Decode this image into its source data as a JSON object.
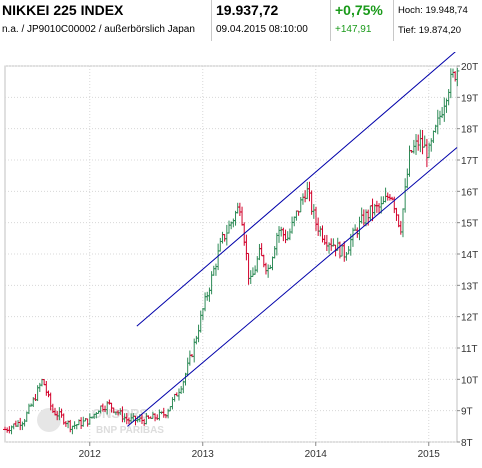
{
  "header": {
    "name": "NIKKEI 225 INDEX",
    "subtitle": "n.a. / JP9010C00002 / außerbörslich Japan",
    "price": "19.937,72",
    "datetime": "09.04.2015 08:10:00",
    "change_pct": "+0,75%",
    "change_abs": "+147,91",
    "high_label": "Hoch:",
    "high_value": "19.948,74",
    "low_label": "Tief:",
    "low_value": "19.874,20"
  },
  "colors": {
    "up": "#2e8b57",
    "down": "#d2002a",
    "channel": "#0000aa",
    "grid": "#d8d8d8",
    "positive": "#1a9a1a"
  },
  "watermark": {
    "line1": "ONSORS",
    "line2": "BNP PARIBAS"
  },
  "chart_data": {
    "type": "candlestick",
    "ylim": [
      8000,
      20000
    ],
    "y_ticks": [
      8000,
      9000,
      10000,
      11000,
      12000,
      13000,
      14000,
      15000,
      16000,
      17000,
      18000,
      19000,
      20000
    ],
    "y_tick_labels": [
      "8T",
      "9T",
      "10T",
      "11T",
      "12T",
      "13T",
      "14T",
      "15T",
      "16T",
      "17T",
      "18T",
      "19T",
      "20T"
    ],
    "xlim": [
      "2011-04",
      "2015-04"
    ],
    "x_ticks": [
      "2012-01",
      "2013-01",
      "2014-01",
      "2015-01"
    ],
    "x_tick_labels": [
      "2012",
      "2013",
      "2014",
      "2015"
    ],
    "grid": true,
    "ohlc_interval": "weekly",
    "trend_channel": {
      "upper": {
        "start": [
          "2012-06",
          11700
        ],
        "end": [
          "2015-04",
          20500
        ]
      },
      "lower": {
        "start": [
          "2012-05",
          8500
        ],
        "end": [
          "2015-04",
          17400
        ]
      }
    },
    "anchors": [
      [
        "2011-04",
        8400
      ],
      [
        "2011-06",
        8700
      ],
      [
        "2011-07",
        9300
      ],
      [
        "2011-08",
        10000
      ],
      [
        "2011-09",
        9000
      ],
      [
        "2011-10",
        8800
      ],
      [
        "2011-11",
        8500
      ],
      [
        "2012-01",
        8700
      ],
      [
        "2012-02",
        9100
      ],
      [
        "2012-03",
        9200
      ],
      [
        "2012-05",
        8700
      ],
      [
        "2012-06",
        8700
      ],
      [
        "2012-07",
        8700
      ],
      [
        "2012-09",
        8900
      ],
      [
        "2012-10",
        9400
      ],
      [
        "2012-11",
        10000
      ],
      [
        "2012-12",
        11000
      ],
      [
        "2013-01",
        12200
      ],
      [
        "2013-02",
        13300
      ],
      [
        "2013-03",
        14400
      ],
      [
        "2013-04",
        15000
      ],
      [
        "2013-05",
        15600
      ],
      [
        "2013-06",
        13000
      ],
      [
        "2013-07",
        14000
      ],
      [
        "2013-08",
        13500
      ],
      [
        "2013-09",
        14800
      ],
      [
        "2013-10",
        14500
      ],
      [
        "2013-11",
        15300
      ],
      [
        "2013-12",
        16100
      ],
      [
        "2014-01",
        15000
      ],
      [
        "2014-02",
        14500
      ],
      [
        "2014-03",
        14300
      ],
      [
        "2014-04",
        14000
      ],
      [
        "2014-05",
        14600
      ],
      [
        "2014-06",
        15100
      ],
      [
        "2014-07",
        15400
      ],
      [
        "2014-08",
        15500
      ],
      [
        "2014-09",
        16000
      ],
      [
        "2014-10",
        14800
      ],
      [
        "2014-11",
        17200
      ],
      [
        "2014-12",
        17600
      ],
      [
        "2015-01",
        17200
      ],
      [
        "2015-02",
        18200
      ],
      [
        "2015-03",
        19300
      ],
      [
        "2015-04",
        19900
      ]
    ]
  }
}
